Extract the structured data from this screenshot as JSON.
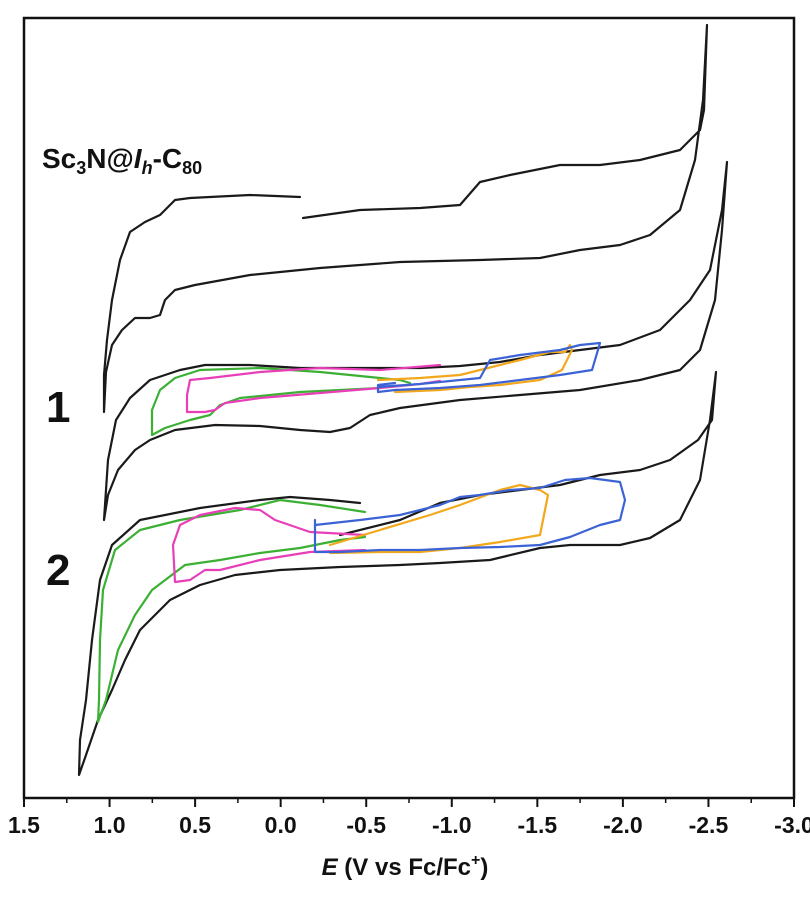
{
  "chart_data": {
    "type": "line",
    "title": "",
    "xlabel": {
      "italic": "E",
      "rest": " (V vs Fc/Fc",
      "sup": "+",
      "close": ")"
    },
    "ylabel": "",
    "xlim": [
      1.5,
      -3.0
    ],
    "x_reversed": true,
    "xticks": [
      1.5,
      1.0,
      0.5,
      0.0,
      -0.5,
      -1.0,
      -1.5,
      -2.0,
      -2.5,
      -3.0
    ],
    "xtick_labels": [
      "1.5",
      "1.0",
      "0.5",
      "0.0",
      "-0.5",
      "-1.0",
      "-1.5",
      "-2.0",
      "-2.5",
      "-3.0"
    ],
    "grid": false,
    "legend": "none",
    "colors": {
      "black": "#1a1a1a",
      "green": "#3cb034",
      "magenta": "#e83fb8",
      "orange": "#f2a81d",
      "blue": "#3b63d6"
    },
    "labels": {
      "compound": {
        "a": "Sc",
        "b": "3",
        "c": "N@",
        "d": "I",
        "e": "h",
        "f": "-C",
        "g": "80"
      },
      "trace_1": "1",
      "trace_2": "2"
    },
    "series": [
      {
        "group": "Sc3N@Ih-C80",
        "color": "black",
        "scan_range": [
          1.0,
          -2.6
        ],
        "reduction_peaks": [
          0.6,
          -1.25,
          -1.65,
          -2.0
        ]
      },
      {
        "group": "1",
        "color": "black",
        "scan_range": [
          1.05,
          -2.68
        ]
      },
      {
        "group": "1",
        "color": "green",
        "scan_range": [
          0.75,
          -0.75
        ]
      },
      {
        "group": "1",
        "color": "magenta",
        "scan_range": [
          0.6,
          -0.97
        ]
      },
      {
        "group": "1",
        "color": "orange",
        "scan_range": [
          -0.7,
          -1.6
        ]
      },
      {
        "group": "1",
        "color": "blue",
        "scan_range": [
          -0.65,
          -1.95
        ]
      },
      {
        "group": "2",
        "color": "black",
        "scan_range": [
          1.18,
          -2.62
        ]
      },
      {
        "group": "2",
        "color": "green",
        "scan_range": [
          1.05,
          -0.55
        ]
      },
      {
        "group": "2",
        "color": "magenta",
        "scan_range": [
          0.6,
          -0.55
        ]
      },
      {
        "group": "2",
        "color": "orange",
        "scan_range": [
          -0.3,
          -1.6
        ]
      },
      {
        "group": "2",
        "color": "blue",
        "scan_range": [
          -0.2,
          -2.08
        ]
      }
    ]
  }
}
